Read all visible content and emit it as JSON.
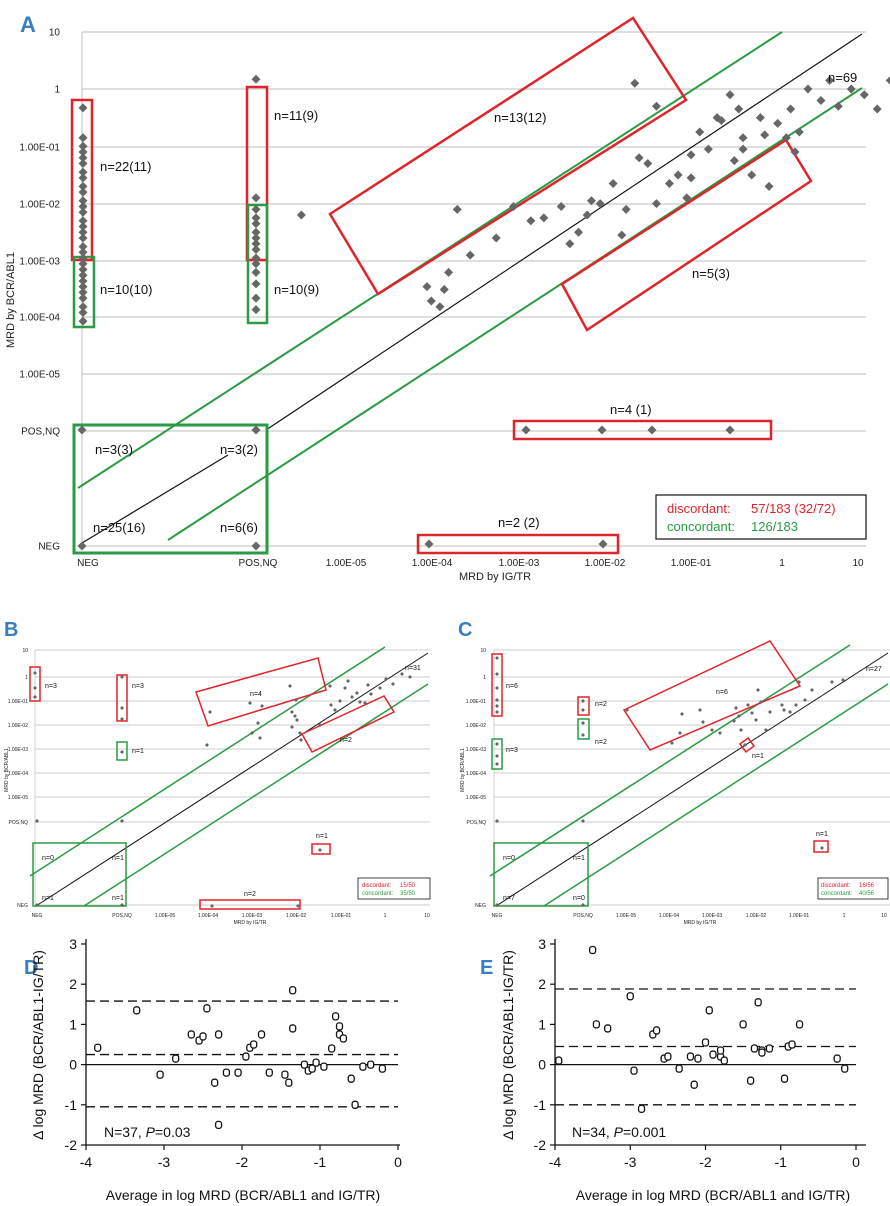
{
  "panel_labels": {
    "A": "A",
    "B": "B",
    "C": "C",
    "D": "D",
    "E": "E"
  },
  "colors": {
    "red": "#e0242b",
    "green": "#2a9b45",
    "marker": "#666666",
    "panel_label": "#3a7ec0",
    "grid": "#bdbdbd"
  },
  "chart_data": [
    {
      "panel": "A",
      "type": "scatter",
      "xlabel": "MRD by IG/TR",
      "ylabel": "MRD by BCR/ABL1",
      "x_ticks": [
        "NEG",
        "POS,NQ",
        "1.00E-05",
        "1.00E-04",
        "1.00E-03",
        "1.00E-02",
        "1.00E-01",
        "1",
        "10"
      ],
      "y_ticks": [
        "10",
        "1",
        "1.00E-01",
        "1.00E-02",
        "1.00E-03",
        "1.00E-04",
        "1.00E-05",
        "POS,NQ",
        "NEG"
      ],
      "grid": true,
      "lines": {
        "identity": "y = x (black)",
        "limits": "±1 log (green)"
      },
      "annotations": [
        "n=22(11)",
        "n=10(10)",
        "n=11(9)",
        "n=10(9)",
        "n=13(12)",
        "n=5(3)",
        "n=69",
        "n=4 (1)",
        "n=2 (2)",
        "n=3(3)",
        "n=3(2)",
        "n=25(16)",
        "n=6(6)"
      ],
      "legend": {
        "discordant": "discordant:",
        "discordant_value": "57/183 (32/72)",
        "concordant": "concordant:",
        "concordant_value": "126/183",
        "position": "bottom-right"
      },
      "points_in_log10": {
        "col_neg_y": [
          -0.33,
          -0.85,
          -1.0,
          -1.1,
          -1.2,
          -1.3,
          -1.45,
          -1.55,
          -1.7,
          -1.8,
          -1.95,
          -2.05,
          -2.15,
          -2.3,
          -2.4,
          -2.5,
          -2.6,
          -2.75,
          -2.85,
          -2.95,
          -3.05,
          -3.15,
          -3.25,
          -3.35,
          -3.45,
          -3.55,
          -3.65,
          -3.8,
          -3.9,
          -4.05
        ],
        "col_posnq_y": [
          0.17,
          -1.9,
          -2.1,
          -2.25,
          -2.35,
          -2.5,
          -2.6,
          -2.7,
          -2.8,
          -2.95,
          -3.05,
          -3.2,
          -3.4,
          -3.65,
          -3.85
        ],
        "pairs": [
          [
            -5.55,
            -2.2
          ],
          [
            -4.1,
            -3.45
          ],
          [
            -4.05,
            -3.7
          ],
          [
            -3.95,
            -3.8
          ],
          [
            -3.9,
            -3.5
          ],
          [
            -3.85,
            -3.2
          ],
          [
            -3.75,
            -2.1
          ],
          [
            -3.6,
            -2.9
          ],
          [
            -3.3,
            -2.6
          ],
          [
            -3.1,
            -2.05
          ],
          [
            -2.9,
            -2.3
          ],
          [
            -2.75,
            -2.25
          ],
          [
            -2.55,
            -2.05
          ],
          [
            -2.45,
            -2.7
          ],
          [
            -2.35,
            -2.5
          ],
          [
            -2.25,
            -2.2
          ],
          [
            -2.2,
            -1.95
          ],
          [
            -2.1,
            -2.0
          ],
          [
            -1.95,
            -1.65
          ],
          [
            -1.85,
            -2.55
          ],
          [
            -1.8,
            -2.1
          ],
          [
            -1.65,
            -1.2
          ],
          [
            -1.55,
            -1.3
          ],
          [
            -1.45,
            -2.0
          ],
          [
            -1.3,
            -1.65
          ],
          [
            -1.2,
            -1.5
          ],
          [
            -1.1,
            -1.9
          ],
          [
            -1.05,
            -1.15
          ],
          [
            -0.95,
            -0.75
          ],
          [
            -0.85,
            -1.05
          ],
          [
            -0.75,
            -0.5
          ],
          [
            -0.6,
            -0.1
          ],
          [
            -0.55,
            -1.25
          ],
          [
            -0.5,
            -0.35
          ],
          [
            -0.45,
            -0.85
          ],
          [
            -0.35,
            -1.5
          ],
          [
            -0.25,
            -0.5
          ],
          [
            -0.2,
            -0.8
          ],
          [
            -0.05,
            -0.6
          ],
          [
            0.05,
            -0.85
          ],
          [
            0.1,
            -0.35
          ],
          [
            0.2,
            -0.75
          ],
          [
            -1.7,
            0.1
          ],
          [
            -1.45,
            -0.3
          ],
          [
            -1.05,
            -1.55
          ],
          [
            -0.7,
            -0.55
          ],
          [
            -0.45,
            -1.05
          ],
          [
            -0.15,
            -1.7
          ],
          [
            0.15,
            -1.1
          ],
          [
            0.3,
            0.0
          ],
          [
            0.45,
            -0.2
          ],
          [
            0.55,
            0.15
          ],
          [
            0.65,
            -0.3
          ],
          [
            0.8,
            0.0
          ],
          [
            0.95,
            -0.1
          ],
          [
            1.1,
            -0.35
          ],
          [
            1.25,
            0.15
          ],
          [
            1.4,
            -0.95
          ],
          [
            1.55,
            -2.05
          ],
          [
            1.75,
            -0.05
          ],
          [
            1.9,
            -0.35
          ],
          [
            2.05,
            -0.1
          ],
          [
            2.2,
            0.1
          ],
          [
            2.35,
            -0.25
          ],
          [
            2.5,
            0.0
          ],
          [
            2.8,
            -0.55
          ],
          [
            3.05,
            -0.25
          ],
          [
            3.25,
            -0.35
          ],
          [
            3.4,
            0.1
          ]
        ]
      }
    },
    {
      "panel": "B",
      "type": "scatter",
      "xlabel": "MRD by IG/TR",
      "ylabel": "MRD by BCR/ABL1",
      "x_ticks": [
        "NEG",
        "POS,NQ",
        "1.00E-05",
        "1.00E-04",
        "1.00E-03",
        "1.00E-02",
        "1.00E-01",
        "1",
        "10"
      ],
      "y_ticks": [
        "10",
        "1",
        "1.00E-01",
        "1.00E-02",
        "1.00E-03",
        "1.00E-04",
        "1.00E-05",
        "POS,NQ",
        "NEG"
      ],
      "annotations": [
        "n=3",
        "n=3",
        "n=1",
        "n=4",
        "n=2",
        "n=31",
        "n=1",
        "n=0",
        "n=1",
        "n=1",
        "n=1",
        "n=2"
      ],
      "legend": {
        "discordant": "discordant:",
        "discordant_value": "15/50",
        "concordant": "concordant:",
        "concordant_value": "35/50",
        "position": "bottom-right"
      }
    },
    {
      "panel": "C",
      "type": "scatter",
      "xlabel": "MRD by IG/TR",
      "ylabel": "MRD by BCR/ABL1",
      "x_ticks": [
        "NEG",
        "POS,NQ",
        "1.00E-05",
        "1.00E-04",
        "1.00E-03",
        "1.00E-02",
        "1.00E-01",
        "1",
        "10"
      ],
      "y_ticks": [
        "10",
        "1",
        "1.00E-01",
        "1.00E-02",
        "1.00E-03",
        "1.00E-04",
        "1.00E-05",
        "POS,NQ",
        "NEG"
      ],
      "annotations": [
        "n=6",
        "n=2",
        "n=3",
        "n=2",
        "n=6",
        "n=1",
        "n=27",
        "n=1",
        "n=0",
        "n=1",
        "n=7",
        "n=0"
      ],
      "legend": {
        "discordant": "discordant:",
        "discordant_value": "16/56",
        "concordant": "concordant:",
        "concordant_value": "40/56",
        "position": "bottom-right"
      }
    },
    {
      "panel": "D",
      "type": "scatter",
      "xlabel": "Average in log MRD (BCR/ABL1 and IG/TR)",
      "ylabel": "Δ log MRD (BCR/ABL1-IG/TR)",
      "xlim": [
        -4,
        0
      ],
      "ylim": [
        -2,
        3
      ],
      "x_ticks": [
        "-4",
        "-3",
        "-2",
        "-1",
        "0"
      ],
      "y_ticks": [
        "3",
        "2",
        "1",
        "0",
        "-1",
        "-2"
      ],
      "reference_lines": {
        "mean": 0.25,
        "upper": 1.58,
        "lower": -1.05
      },
      "annotation_prefix": "N=37, ",
      "annotation_p": "P",
      "annotation_suffix": "=0.03",
      "x": [
        -3.85,
        -3.35,
        -3.05,
        -2.85,
        -2.65,
        -2.55,
        -2.5,
        -2.45,
        -2.35,
        -2.3,
        -2.3,
        -2.2,
        -2.05,
        -1.95,
        -1.9,
        -1.85,
        -1.75,
        -1.65,
        -1.45,
        -1.4,
        -1.35,
        -1.35,
        -1.2,
        -1.15,
        -1.1,
        -1.05,
        -0.95,
        -0.85,
        -0.8,
        -0.75,
        -0.75,
        -0.7,
        -0.6,
        -0.55,
        -0.45,
        -0.35,
        -0.2
      ],
      "y": [
        0.42,
        1.35,
        -0.25,
        0.15,
        0.75,
        0.6,
        0.7,
        1.4,
        -0.45,
        0.75,
        -1.5,
        -0.2,
        -0.2,
        0.2,
        0.42,
        0.5,
        0.75,
        -0.2,
        -0.25,
        -0.45,
        0.9,
        1.85,
        0.0,
        -0.15,
        -0.1,
        0.05,
        -0.05,
        0.4,
        1.2,
        0.95,
        0.75,
        0.65,
        -0.35,
        -1.0,
        -0.05,
        0.0,
        -0.1
      ]
    },
    {
      "panel": "E",
      "type": "scatter",
      "xlabel": "Average in log MRD (BCR/ABL1 and IG/TR)",
      "ylabel": "Δ log MRD (BCR/ABL1-IG/TR)",
      "xlim": [
        -4,
        0
      ],
      "ylim": [
        -2,
        3
      ],
      "x_ticks": [
        "-4",
        "-3",
        "-2",
        "-1",
        "0"
      ],
      "y_ticks": [
        "3",
        "2",
        "1",
        "0",
        "-1",
        "-2"
      ],
      "reference_lines": {
        "mean": 0.45,
        "upper": 1.88,
        "lower": -1.0
      },
      "annotation_prefix": "N=34, ",
      "annotation_p": "P",
      "annotation_suffix": "=0.001",
      "x": [
        -3.95,
        -3.5,
        -3.45,
        -3.3,
        -3.0,
        -2.95,
        -2.85,
        -2.7,
        -2.65,
        -2.55,
        -2.5,
        -2.35,
        -2.2,
        -2.15,
        -2.1,
        -2.0,
        -1.95,
        -1.9,
        -1.8,
        -1.8,
        -1.75,
        -1.5,
        -1.4,
        -1.35,
        -1.3,
        -1.25,
        -1.25,
        -1.15,
        -0.95,
        -0.9,
        -0.85,
        -0.75,
        -0.25,
        -0.15
      ],
      "y": [
        0.1,
        2.85,
        1.0,
        0.9,
        1.7,
        -0.15,
        -1.1,
        0.75,
        0.85,
        0.15,
        0.2,
        -0.1,
        0.2,
        -0.5,
        0.15,
        0.55,
        1.35,
        0.25,
        0.2,
        0.35,
        0.1,
        1.0,
        -0.4,
        0.4,
        1.55,
        0.35,
        0.3,
        0.4,
        -0.35,
        0.45,
        0.5,
        1.0,
        0.15,
        -0.1
      ]
    }
  ]
}
